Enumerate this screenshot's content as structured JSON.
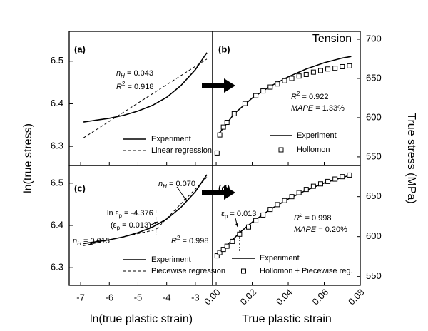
{
  "figure": {
    "ylabel_left": "ln(true stress)",
    "ylabel_right": "True stress (MPa)",
    "xlabel_left": "ln(true plastic strain)",
    "xlabel_right": "True plastic strain",
    "corner_label": "Tension"
  },
  "chart_data": [
    {
      "type": "line",
      "panel_label": "(a)",
      "xlim": [
        -7.4,
        -2.4
      ],
      "xticks": [
        -7,
        -6,
        -5,
        -4,
        -3
      ],
      "show_xtick_labels": false,
      "ylim": [
        6.255,
        6.57
      ],
      "yticks": [
        6.3,
        6.4,
        6.5
      ],
      "yaxis_side": "left",
      "series": [
        {
          "name": "Experiment",
          "color": "#000000",
          "style": "solid",
          "x": [
            -6.9,
            -6.5,
            -6,
            -5.5,
            -5,
            -4.5,
            -4,
            -3.5,
            -3,
            -2.6
          ],
          "values": [
            6.357,
            6.361,
            6.366,
            6.373,
            6.383,
            6.396,
            6.415,
            6.443,
            6.48,
            6.52
          ]
        },
        {
          "name": "Linear regression",
          "color": "#000000",
          "style": "dashed",
          "x": [
            -6.9,
            -2.6
          ],
          "values": [
            6.32,
            6.505
          ]
        }
      ],
      "annotations": [
        {
          "parts": [
            "n",
            "H",
            " = 0.043"
          ],
          "styles": [
            "i",
            "isub",
            ""
          ]
        },
        {
          "parts": [
            "R",
            "2",
            " = 0.918"
          ],
          "styles": [
            "i",
            "sup",
            ""
          ]
        }
      ]
    },
    {
      "type": "line",
      "panel_label": "(b)",
      "xlim": [
        -0.002,
        0.08
      ],
      "xticks": [
        {
          "value": 0,
          "label": "0.00"
        },
        0.02,
        0.04,
        0.06,
        0.08
      ],
      "show_xtick_labels": false,
      "ylim": [
        539,
        710
      ],
      "yticks": [
        550,
        600,
        650,
        700
      ],
      "yaxis_side": "right",
      "series": [
        {
          "name": "Experiment",
          "color": "#000000",
          "style": "solid",
          "x": [
            0.001,
            0.01,
            0.02,
            0.03,
            0.04,
            0.05,
            0.06,
            0.07,
            0.075
          ],
          "values": [
            578,
            605,
            625,
            640,
            652,
            662,
            670,
            676,
            678
          ]
        },
        {
          "name": "Hollomon",
          "color": "#000000",
          "style": "markers",
          "x": [
            0.0005,
            0.002,
            0.004,
            0.006,
            0.01,
            0.016,
            0.022,
            0.026,
            0.03,
            0.034,
            0.038,
            0.042,
            0.046,
            0.05,
            0.054,
            0.058,
            0.062,
            0.066,
            0.07,
            0.074
          ],
          "values": [
            555,
            578,
            588,
            594,
            605,
            618,
            628,
            634,
            639,
            643,
            647,
            650,
            653,
            655,
            658,
            660,
            662,
            663,
            665,
            666
          ]
        }
      ],
      "annotations": [
        {
          "parts": [
            "R",
            "2",
            " = 0.922"
          ],
          "styles": [
            "i",
            "sup",
            ""
          ]
        },
        {
          "parts": [
            "MAPE",
            " = 1.33%"
          ],
          "styles": [
            "i",
            ""
          ]
        }
      ]
    },
    {
      "type": "line",
      "panel_label": "(c)",
      "xlim": [
        -7.4,
        -2.4
      ],
      "xticks": [
        -7,
        -6,
        -5,
        -4,
        -3
      ],
      "show_xtick_labels": true,
      "ylim": [
        6.258,
        6.542
      ],
      "yticks": [
        6.3,
        6.4,
        6.5
      ],
      "yaxis_side": "left",
      "marker_x": -4.376,
      "series": [
        {
          "name": "Experiment",
          "color": "#000000",
          "style": "solid",
          "x": [
            -6.9,
            -6.5,
            -6,
            -5.5,
            -5,
            -4.5,
            -4,
            -3.5,
            -3,
            -2.6
          ],
          "values": [
            6.357,
            6.361,
            6.366,
            6.373,
            6.383,
            6.396,
            6.415,
            6.443,
            6.48,
            6.52
          ]
        },
        {
          "name": "Piecewise regression",
          "color": "#000000",
          "style": "dashed",
          "x": [
            -6.9,
            -4.376,
            -2.6
          ],
          "values": [
            6.352,
            6.39,
            6.514
          ]
        }
      ],
      "annotations": [
        {
          "parts": [
            "n",
            "H",
            " = 0.070"
          ],
          "styles": [
            "i",
            "isub",
            ""
          ]
        },
        {
          "parts": [
            "ln ε",
            "p",
            " = -4.376"
          ],
          "styles": [
            "",
            "sub",
            ""
          ]
        },
        {
          "parts": [
            "(ε",
            "p",
            " = 0.013)"
          ],
          "styles": [
            "",
            "sub",
            ""
          ]
        },
        {
          "parts": [
            "n",
            "H",
            " = 0.015"
          ],
          "styles": [
            "i",
            "isub",
            ""
          ]
        },
        {
          "parts": [
            "R",
            "2",
            " = 0.998"
          ],
          "styles": [
            "i",
            "sup",
            ""
          ]
        }
      ]
    },
    {
      "type": "line",
      "panel_label": "(d)",
      "xlim": [
        -0.002,
        0.08
      ],
      "xticks": [
        {
          "value": 0,
          "label": "0.00"
        },
        0.02,
        0.04,
        0.06,
        0.08
      ],
      "show_xtick_labels": true,
      "ylim": [
        539,
        689
      ],
      "yticks": [
        550,
        600,
        650
      ],
      "yaxis_side": "right",
      "marker_x": 0.013,
      "series": [
        {
          "name": "Experiment",
          "color": "#000000",
          "style": "solid",
          "x": [
            0.001,
            0.005,
            0.01,
            0.013,
            0.02,
            0.03,
            0.04,
            0.05,
            0.06,
            0.07,
            0.075
          ],
          "values": [
            575,
            587,
            598,
            605,
            618,
            634,
            647,
            658,
            667,
            674,
            677
          ]
        },
        {
          "name": "Hollomon + Piecewise reg.",
          "color": "#000000",
          "style": "markers",
          "x": [
            0.0005,
            0.002,
            0.004,
            0.006,
            0.009,
            0.013,
            0.018,
            0.022,
            0.026,
            0.03,
            0.034,
            0.038,
            0.042,
            0.046,
            0.05,
            0.054,
            0.058,
            0.062,
            0.066,
            0.07,
            0.074
          ],
          "values": [
            576,
            580,
            584,
            588,
            594,
            603,
            612,
            620,
            627,
            634,
            640,
            645,
            650,
            655,
            659,
            663,
            666,
            669,
            672,
            675,
            677
          ]
        }
      ],
      "annotations": [
        {
          "parts": [
            "ε",
            "p",
            " = 0.013"
          ],
          "styles": [
            "",
            "sub",
            ""
          ]
        },
        {
          "parts": [
            "R",
            "2",
            " = 0.998"
          ],
          "styles": [
            "i",
            "sup",
            ""
          ]
        },
        {
          "parts": [
            "MAPE",
            " = 0.20%"
          ],
          "styles": [
            "i",
            ""
          ]
        }
      ]
    }
  ]
}
